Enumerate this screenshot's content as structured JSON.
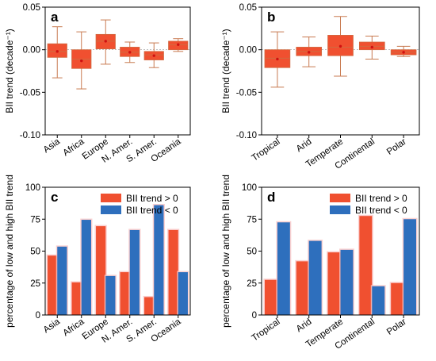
{
  "colors": {
    "box_fill": "#f05030",
    "box_edge": "#d06a40",
    "whisker": "#c87a50",
    "mean": "#d01010",
    "positive": "#f05030",
    "negative": "#2e6fbd",
    "halo": "#f9c4c4"
  },
  "chart_data": [
    {
      "id": "a",
      "type": "box",
      "panel_label": "a",
      "ylabel": "BII trend (decade⁻¹)",
      "ylim": [
        -0.1,
        0.05
      ],
      "yticks": [
        "0.05",
        "0.00",
        "-0.05",
        "-0.10"
      ],
      "ytick_values": [
        0.05,
        0.0,
        -0.05,
        -0.1
      ],
      "categories": [
        "Asia",
        "Africa",
        "Europe",
        "N. Amer.",
        "S. Amer.",
        "Oceania"
      ],
      "boxes": [
        {
          "whisker_low": -0.033,
          "q1": -0.009,
          "median": -0.002,
          "q3": 0.007,
          "whisker_high": 0.027,
          "mean": -0.002
        },
        {
          "whisker_low": -0.046,
          "q1": -0.022,
          "median": -0.011,
          "q3": 0.0,
          "whisker_high": 0.021,
          "mean": -0.013
        },
        {
          "whisker_low": -0.017,
          "q1": 0.001,
          "median": 0.01,
          "q3": 0.018,
          "whisker_high": 0.035,
          "mean": 0.01
        },
        {
          "whisker_low": -0.015,
          "q1": -0.008,
          "median": -0.003,
          "q3": 0.003,
          "whisker_high": 0.009,
          "mean": -0.003
        },
        {
          "whisker_low": -0.021,
          "q1": -0.012,
          "median": -0.006,
          "q3": -0.002,
          "whisker_high": 0.008,
          "mean": -0.007
        },
        {
          "whisker_low": -0.002,
          "q1": 0.0,
          "median": 0.006,
          "q3": 0.01,
          "whisker_high": 0.013,
          "mean": 0.006
        }
      ]
    },
    {
      "id": "b",
      "type": "box",
      "panel_label": "b",
      "ylabel": "BII trend (decade⁻¹)",
      "ylim": [
        -0.1,
        0.05
      ],
      "yticks": [
        "0.05",
        "0.00",
        "-0.05",
        "-0.10"
      ],
      "ytick_values": [
        0.05,
        0.0,
        -0.05,
        -0.1
      ],
      "categories": [
        "Tropical",
        "Arid",
        "Temperate",
        "Continental",
        "Polar"
      ],
      "boxes": [
        {
          "whisker_low": -0.044,
          "q1": -0.021,
          "median": -0.01,
          "q3": 0.0,
          "whisker_high": 0.021,
          "mean": -0.011
        },
        {
          "whisker_low": -0.02,
          "q1": -0.007,
          "median": -0.002,
          "q3": 0.003,
          "whisker_high": 0.015,
          "mean": -0.003
        },
        {
          "whisker_low": -0.031,
          "q1": -0.007,
          "median": 0.003,
          "q3": 0.017,
          "whisker_high": 0.039,
          "mean": 0.004
        },
        {
          "whisker_low": -0.011,
          "q1": 0.0,
          "median": 0.004,
          "q3": 0.009,
          "whisker_high": 0.016,
          "mean": 0.003
        },
        {
          "whisker_low": -0.008,
          "q1": -0.006,
          "median": -0.003,
          "q3": 0.0,
          "whisker_high": 0.004,
          "mean": -0.003
        }
      ]
    },
    {
      "id": "c",
      "type": "bar",
      "panel_label": "c",
      "ylabel": "percentage of low and high BII trend",
      "ylim": [
        0,
        100
      ],
      "yticks": [
        "0",
        "25",
        "50",
        "75",
        "100"
      ],
      "ytick_values": [
        0,
        25,
        50,
        75,
        100
      ],
      "legend_position": "top-right",
      "categories": [
        "Asia",
        "Africa",
        "Europe",
        "N. Amer.",
        "S. Amer.",
        "Oceania"
      ],
      "series": [
        {
          "name": "BII trend > 0",
          "values": [
            46.5,
            25.5,
            69.5,
            33.5,
            14.0,
            66.5
          ]
        },
        {
          "name": "BII trend < 0",
          "values": [
            53.5,
            74.5,
            30.5,
            66.5,
            86.0,
            33.5
          ]
        }
      ]
    },
    {
      "id": "d",
      "type": "bar",
      "panel_label": "d",
      "ylabel": "percentage of low and high BII trend",
      "ylim": [
        0,
        100
      ],
      "yticks": [
        "0",
        "25",
        "50",
        "75",
        "100"
      ],
      "ytick_values": [
        0,
        25,
        50,
        75,
        100
      ],
      "legend_position": "top-right",
      "categories": [
        "Tropical",
        "Arid",
        "Temperate",
        "Continental",
        "Polar"
      ],
      "series": [
        {
          "name": "BII trend > 0",
          "values": [
            27.5,
            42.0,
            49.0,
            77.5,
            25.0
          ]
        },
        {
          "name": "BII trend < 0",
          "values": [
            72.5,
            58.0,
            51.0,
            22.5,
            75.0
          ]
        }
      ]
    }
  ]
}
